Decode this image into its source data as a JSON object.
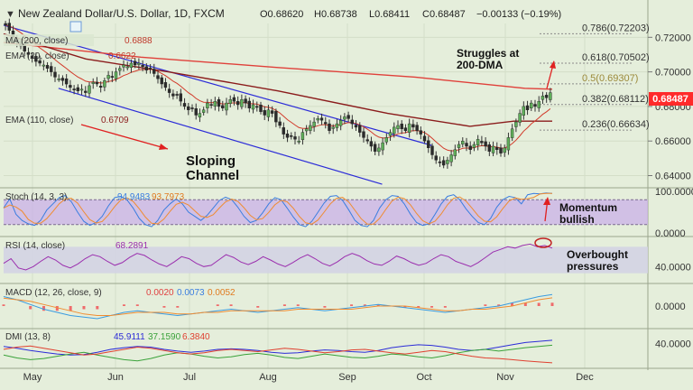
{
  "header": {
    "pair": "New Zealand Dollar/U.S. Dollar, 1D, FXCM",
    "open": "O0.68620",
    "high": "H0.68738",
    "low": "L0.68411",
    "close": "C0.68487",
    "change": "−0.00133 (−0.19%)"
  },
  "colors": {
    "background": "#e5eedb",
    "up_candle": "#5fae5a",
    "down_candle": "#2b2b2b",
    "channel": "#2c2cd8",
    "ma200": "#e0403a",
    "ema110": "#8b1c1c",
    "ema_fast": "#d23b2b",
    "stoch_k": "#3a7de0",
    "stoch_d": "#f08c30",
    "stoch_band": "#c9b0e8",
    "rsi": "#9b2fae",
    "rsi_band": "#d3d3e3",
    "macd": "#3a9be0",
    "macd_signal": "#f08c30",
    "macd_hist": "#ef6b6b",
    "di_plus": "#3aa23a",
    "di_minus": "#e04030",
    "adx": "#2c2cd8",
    "price_tag": "#ff2a2a"
  },
  "chart_data": {
    "type": "candlestick",
    "title": "New Zealand Dollar/U.S. Dollar, 1D, FXCM",
    "ylim": [
      0.634,
      0.728
    ],
    "y_ticks": [
      "0.72000",
      "0.70000",
      "0.68000",
      "0.66000",
      "0.64000"
    ],
    "x_ticks": [
      "May",
      "Jun",
      "Jul",
      "Aug",
      "Sep",
      "Oct",
      "Nov",
      "Dec"
    ],
    "last_price": "0.68487",
    "close_series": [
      0.727,
      0.724,
      0.72,
      0.717,
      0.715,
      0.712,
      0.71,
      0.708,
      0.706,
      0.705,
      0.704,
      0.702,
      0.7,
      0.697,
      0.696,
      0.695,
      0.693,
      0.691,
      0.69,
      0.689,
      0.69,
      0.688,
      0.692,
      0.694,
      0.693,
      0.691,
      0.695,
      0.698,
      0.697,
      0.7,
      0.702,
      0.704,
      0.703,
      0.705,
      0.704,
      0.705,
      0.703,
      0.701,
      0.702,
      0.699,
      0.696,
      0.693,
      0.691,
      0.688,
      0.686,
      0.687,
      0.683,
      0.68,
      0.678,
      0.679,
      0.675,
      0.676,
      0.678,
      0.682,
      0.681,
      0.683,
      0.68,
      0.679,
      0.682,
      0.684,
      0.683,
      0.681,
      0.684,
      0.682,
      0.679,
      0.681,
      0.68,
      0.677,
      0.675,
      0.678,
      0.676,
      0.671,
      0.669,
      0.664,
      0.662,
      0.663,
      0.661,
      0.66,
      0.665,
      0.667,
      0.669,
      0.671,
      0.673,
      0.672,
      0.67,
      0.666,
      0.668,
      0.67,
      0.672,
      0.674,
      0.673,
      0.67,
      0.668,
      0.665,
      0.662,
      0.66,
      0.657,
      0.654,
      0.656,
      0.659,
      0.662,
      0.665,
      0.668,
      0.669,
      0.667,
      0.666,
      0.67,
      0.668,
      0.666,
      0.664,
      0.66,
      0.656,
      0.652,
      0.649,
      0.648,
      0.646,
      0.649,
      0.652,
      0.655,
      0.658,
      0.66,
      0.657,
      0.655,
      0.658,
      0.661,
      0.659,
      0.657,
      0.654,
      0.657,
      0.655,
      0.653,
      0.656,
      0.662,
      0.667,
      0.671,
      0.676,
      0.68,
      0.678,
      0.682,
      0.68,
      0.683,
      0.686,
      0.685,
      0.688
    ],
    "fib_levels": [
      {
        "label": "0.786(0.72203)",
        "value": 0.72203
      },
      {
        "label": "0.618(0.70502)",
        "value": 0.70502
      },
      {
        "label": "0.5(0.69307)",
        "value": 0.69307
      },
      {
        "label": "0.382(0.68112)",
        "value": 0.68112
      },
      {
        "label": "0.236(0.66634)",
        "value": 0.66634
      }
    ],
    "channel_upper": [
      [
        0.0,
        0.727
      ],
      [
        0.78,
        0.6575
      ]
    ],
    "channel_lower": [
      [
        0.1,
        0.6905
      ],
      [
        0.69,
        0.635
      ]
    ],
    "ma200_pts": [
      [
        0.0,
        0.717
      ],
      [
        0.25,
        0.7085
      ],
      [
        0.5,
        0.7025
      ],
      [
        0.75,
        0.697
      ],
      [
        0.95,
        0.6905
      ],
      [
        1.0,
        0.69
      ]
    ],
    "ema110_pts": [
      [
        0.0,
        0.722
      ],
      [
        0.15,
        0.7075
      ],
      [
        0.3,
        0.7
      ],
      [
        0.5,
        0.689
      ],
      [
        0.7,
        0.676
      ],
      [
        0.85,
        0.6685
      ],
      [
        0.93,
        0.6715
      ],
      [
        1.0,
        0.6715
      ]
    ],
    "indicators": {
      "ma200": {
        "label": "MA (200, close)",
        "value": "0.6888"
      },
      "ema_fast": {
        "label": "EMA (20, close)",
        "value": "0.6622"
      },
      "ema110": {
        "label": "EMA (110, close)",
        "value": "0.6709"
      }
    },
    "stoch": {
      "label": "Stoch (14, 3, 3)",
      "k": "94.9483",
      "d": "93.7973",
      "ylim": [
        0,
        100
      ],
      "band": [
        20,
        80
      ],
      "ticks": [
        "100.0000",
        "0.0000"
      ],
      "k_series": [
        60,
        82,
        45,
        30,
        22,
        18,
        30,
        55,
        70,
        85,
        90,
        75,
        50,
        28,
        18,
        25,
        40,
        65,
        85,
        88,
        80,
        60,
        35,
        20,
        15,
        30,
        55,
        70,
        82,
        70,
        50,
        40,
        30,
        42,
        60,
        78,
        86,
        80,
        62,
        40,
        25,
        30,
        48,
        70,
        85,
        80,
        60,
        38,
        20,
        15,
        28,
        50,
        72,
        88,
        90,
        78,
        55,
        30,
        18,
        15,
        30,
        60,
        80,
        90,
        88,
        70,
        45,
        25,
        18,
        22,
        45,
        70,
        88,
        92,
        80,
        58,
        40,
        25,
        20,
        35,
        62,
        80,
        88,
        85,
        70,
        92,
        95,
        94,
        96,
        95
      ]
    },
    "rsi": {
      "label": "RSI (14, close)",
      "value": "68.2891",
      "ylim": [
        20,
        80
      ],
      "band": [
        30,
        70
      ],
      "ticks": [
        "40.0000"
      ],
      "series": [
        45,
        52,
        38,
        35,
        40,
        48,
        55,
        50,
        42,
        38,
        44,
        52,
        58,
        55,
        48,
        42,
        46,
        54,
        60,
        57,
        50,
        44,
        40,
        47,
        55,
        52,
        45,
        40,
        42,
        50,
        58,
        54,
        47,
        43,
        48,
        55,
        50,
        44,
        40,
        46,
        53,
        58,
        52,
        45,
        41,
        47,
        55,
        60,
        56,
        49,
        44,
        42,
        48,
        56,
        52,
        46,
        42,
        45,
        52,
        58,
        55,
        48,
        44,
        40,
        46,
        54,
        62,
        66,
        70,
        68,
        72,
        74,
        70,
        72,
        68
      ]
    },
    "macd": {
      "label": "MACD (12, 26, close, 9)",
      "hist": "0.0020",
      "macd": "0.0073",
      "signal": "0.0052",
      "ylim": [
        -0.012,
        0.012
      ],
      "ticks": [
        "0.0000"
      ],
      "macd_series": [
        0.006,
        0.004,
        0.001,
        -0.002,
        -0.004,
        -0.006,
        -0.007,
        -0.008,
        -0.006,
        -0.004,
        -0.003,
        -0.004,
        -0.005,
        -0.006,
        -0.005,
        -0.004,
        -0.003,
        -0.002,
        -0.003,
        -0.004,
        -0.003,
        -0.002,
        -0.001,
        -0.002,
        -0.003,
        -0.002,
        -0.001,
        0.0,
        0.001,
        0.0,
        -0.001,
        -0.002,
        -0.003,
        -0.004,
        -0.003,
        -0.002,
        -0.001,
        0.0,
        0.002,
        0.004,
        0.006,
        0.0073
      ],
      "signal_series": [
        0.005,
        0.004,
        0.003,
        0.001,
        -0.001,
        -0.003,
        -0.005,
        -0.006,
        -0.006,
        -0.005,
        -0.004,
        -0.004,
        -0.004,
        -0.005,
        -0.005,
        -0.004,
        -0.004,
        -0.003,
        -0.003,
        -0.003,
        -0.003,
        -0.003,
        -0.002,
        -0.002,
        -0.002,
        -0.002,
        -0.002,
        -0.001,
        0.0,
        0.0,
        0.0,
        -0.001,
        -0.002,
        -0.003,
        -0.003,
        -0.002,
        -0.002,
        -0.001,
        0.0,
        0.002,
        0.004,
        0.0052
      ]
    },
    "dmi": {
      "label": "DMI (13, 8)",
      "adx": "45.9111",
      "di_plus": "37.1590",
      "di_minus": "6.3840",
      "ylim": [
        0,
        60
      ],
      "ticks": [
        "40.0000"
      ],
      "adx_series": [
        35,
        32,
        28,
        25,
        22,
        20,
        21,
        25,
        30,
        33,
        35,
        34,
        30,
        27,
        25,
        27,
        30,
        31,
        30,
        28,
        25,
        23,
        24,
        27,
        29,
        28,
        26,
        25,
        28,
        33,
        36,
        38,
        37,
        34,
        30,
        28,
        30,
        34,
        38,
        42,
        44,
        45.9
      ],
      "plus_series": [
        20,
        15,
        12,
        14,
        18,
        22,
        25,
        20,
        16,
        12,
        10,
        14,
        20,
        24,
        22,
        18,
        15,
        17,
        21,
        23,
        20,
        16,
        14,
        18,
        22,
        19,
        16,
        15,
        18,
        22,
        20,
        17,
        15,
        19,
        24,
        28,
        30,
        27,
        30,
        33,
        35,
        37.2
      ],
      "minus_series": [
        30,
        34,
        36,
        32,
        28,
        24,
        20,
        22,
        26,
        30,
        34,
        32,
        28,
        24,
        22,
        24,
        28,
        30,
        28,
        26,
        29,
        32,
        30,
        27,
        24,
        26,
        29,
        30,
        27,
        24,
        22,
        25,
        28,
        26,
        22,
        18,
        15,
        14,
        12,
        10,
        8,
        6.4
      ]
    }
  },
  "annotations": {
    "channel": "Sloping\nChannel",
    "dma": "Struggles at\n200-DMA",
    "momentum": "Momentum\nbullish",
    "overbought": "Overbought\npressures"
  }
}
